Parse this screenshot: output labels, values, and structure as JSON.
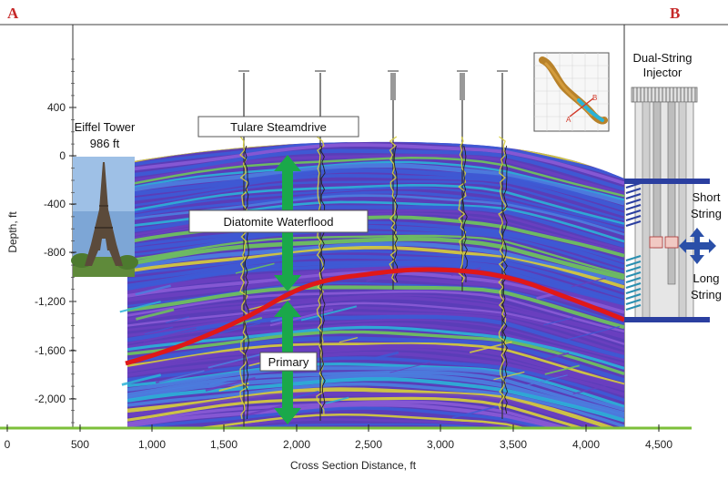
{
  "corner_labels": {
    "left": "A",
    "right": "B"
  },
  "axes": {
    "x_label": "Cross Section Distance, ft",
    "y_label": "Depth, ft",
    "x_ticks": [
      "0",
      "500",
      "1,000",
      "1,500",
      "2,000",
      "2,500",
      "3,000",
      "3,500",
      "4,000",
      "4,500"
    ],
    "y_ticks": [
      "400",
      "0",
      "-400",
      "-800",
      "-1,200",
      "-1,600",
      "-2,000"
    ]
  },
  "eiffel": {
    "title": "Eiffel Tower",
    "height_label": "986 ft"
  },
  "zones": {
    "tulare": "Tulare Steamdrive",
    "diatomite": "Diatomite Waterflood",
    "primary": "Primary"
  },
  "injector": {
    "title_line1": "Dual-String",
    "title_line2": "Injector",
    "short_line1": "Short",
    "short_line2": "String",
    "long_line1": "Long",
    "long_line2": "String"
  },
  "colors": {
    "marker_red": "#e01818",
    "arrow_green": "#1aa84a",
    "arrow_blue": "#2a4fa8",
    "injector_bar": "#2b3fa0",
    "corner_red": "#c62828",
    "layer_purple": "#6a3fc0",
    "layer_blue": "#3c5bd6",
    "layer_cyan": "#2ab3d8",
    "layer_yellow": "#d8cf3a",
    "layer_green": "#6fc65a"
  },
  "icons": [
    "map-inset-icon",
    "eiffel-tower-image",
    "double-arrow-icon"
  ]
}
